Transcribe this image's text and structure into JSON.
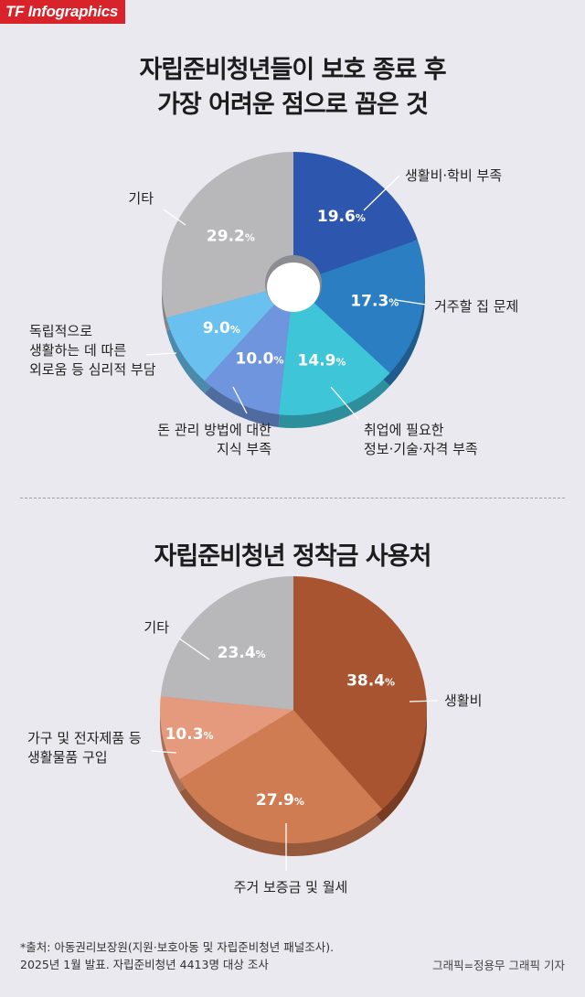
{
  "brand": "TF Infographics",
  "charts": {
    "title1_line1": "자립준비청년들이 보호 종료 후",
    "title1_line2": "가장 어려운 점으로 꼽은 것",
    "title2": "자립준비청년 정착금 사용처"
  },
  "chart_data": [
    {
      "type": "pie",
      "title": "자립준비청년들이 보호 종료 후 가장 어려운 점으로 꼽은 것",
      "unit": "%",
      "slices": [
        {
          "label": "생활비·학비 부족",
          "value": 19.6,
          "color": "#2d57ae"
        },
        {
          "label": "거주할 집 문제",
          "value": 17.3,
          "color": "#2b7ec1"
        },
        {
          "label": "취업에 필요한 정보·기술·자격 부족",
          "value": 14.9,
          "color": "#3ec6d8"
        },
        {
          "label": "돈 관리 방법에 대한 지식 부족",
          "value": 10.0,
          "color": "#6f95de"
        },
        {
          "label": "독립적으로 생활하는 데 따른 외로움 등 심리적 부담",
          "value": 9.0,
          "color": "#6ac0ee"
        },
        {
          "label": "기타",
          "value": 29.2,
          "color": "#b8b8bb"
        }
      ]
    },
    {
      "type": "pie",
      "title": "자립준비청년 정착금 사용처",
      "unit": "%",
      "slices": [
        {
          "label": "생활비",
          "value": 38.4,
          "color": "#a85430"
        },
        {
          "label": "주거 보증금 및 월세",
          "value": 27.9,
          "color": "#d07c52"
        },
        {
          "label": "가구 및 전자제품 등 생활물품 구입",
          "value": 10.3,
          "color": "#e69a7d"
        },
        {
          "label": "기타",
          "value": 23.4,
          "color": "#b8b8bb"
        }
      ]
    }
  ],
  "labels1": [
    {
      "lines": [
        "생활비·학비 부족"
      ],
      "pct": "19.6",
      "unit": "%"
    },
    {
      "lines": [
        "거주할 집 문제"
      ],
      "pct": "17.3",
      "unit": "%"
    },
    {
      "lines": [
        "취업에 필요한",
        "정보·기술·자격 부족"
      ],
      "pct": "14.9",
      "unit": "%"
    },
    {
      "lines": [
        "돈 관리 방법에 대한",
        "지식 부족"
      ],
      "pct": "10.0",
      "unit": "%"
    },
    {
      "lines": [
        "독립적으로",
        "생활하는 데 따른",
        "외로움 등 심리적 부담"
      ],
      "pct": "9.0",
      "unit": "%"
    },
    {
      "lines": [
        "기타"
      ],
      "pct": "29.2",
      "unit": "%"
    }
  ],
  "labels2": [
    {
      "lines": [
        "생활비"
      ],
      "pct": "38.4",
      "unit": "%"
    },
    {
      "lines": [
        "주거 보증금 및 월세"
      ],
      "pct": "27.9",
      "unit": "%"
    },
    {
      "lines": [
        "가구 및 전자제품 등",
        "생활물품 구입"
      ],
      "pct": "10.3",
      "unit": "%"
    },
    {
      "lines": [
        "기타"
      ],
      "pct": "23.4",
      "unit": "%"
    }
  ],
  "footnote": {
    "line1": "*출처: 아동권리보장원(지원·보호아동 및 자립준비청년 패널조사).",
    "line2": "2025년 1월 발표. 자립준비청년 4413명 대상 조사"
  },
  "credit": "그래픽=정용무 그래픽 기자"
}
